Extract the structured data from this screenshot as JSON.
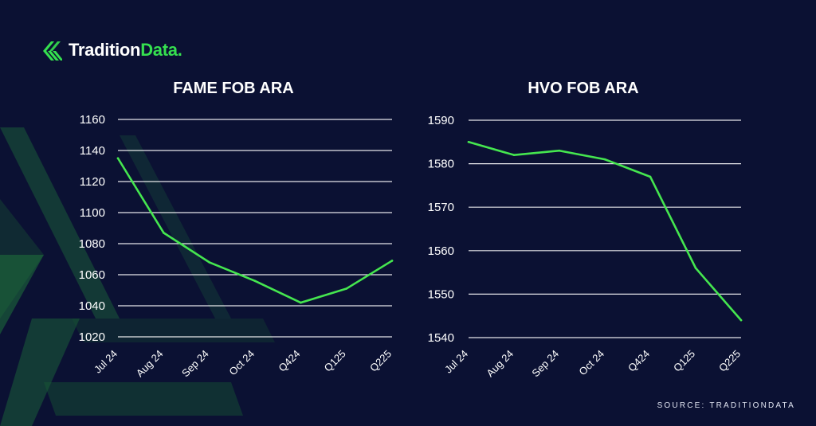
{
  "brand": {
    "name_prefix": "Tradition",
    "name_suffix": "Data.",
    "logo_icon": "stripes-logo-icon",
    "accent_color": "#35e04f"
  },
  "footer": {
    "source": "SOURCE: TRADITIONDATA"
  },
  "colors": {
    "background": "#0b1133",
    "line": "#45e64f",
    "grid": "#ffffff"
  },
  "chart_data": [
    {
      "type": "line",
      "title": "FAME FOB ARA",
      "categories": [
        "Jul 24",
        "Aug 24",
        "Sep 24",
        "Oct 24",
        "Q424",
        "Q125",
        "Q225"
      ],
      "series": [
        {
          "values": [
            1135,
            1087,
            1068,
            1056,
            1042,
            1051,
            1069
          ]
        }
      ],
      "ylim": [
        1020,
        1160
      ],
      "yticks": [
        1020,
        1040,
        1060,
        1080,
        1100,
        1120,
        1140,
        1160
      ],
      "grid": true
    },
    {
      "type": "line",
      "title": "HVO FOB ARA",
      "categories": [
        "Jul 24",
        "Aug 24",
        "Sep 24",
        "Oct 24",
        "Q424",
        "Q125",
        "Q225"
      ],
      "series": [
        {
          "values": [
            1585,
            1582,
            1583,
            1581,
            1577,
            1556,
            1544
          ]
        }
      ],
      "ylim": [
        1540,
        1590
      ],
      "yticks": [
        1540,
        1550,
        1560,
        1570,
        1580,
        1590
      ],
      "grid": true
    }
  ]
}
